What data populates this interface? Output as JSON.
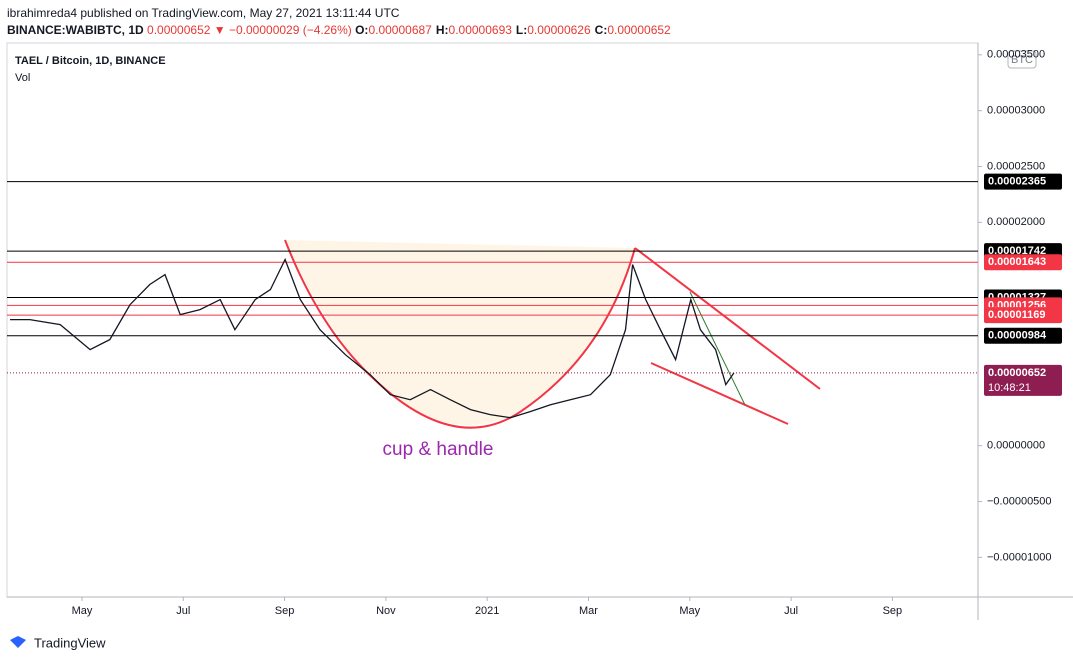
{
  "header": {
    "publisher": "ibrahimreda4 published on TradingView.com, May 27, 2021 13:11:44 UTC",
    "symbol": "BINANCE:WABIBTC, 1D",
    "last": "0.00000652",
    "change": "▼ −0.00000029 (−4.26%)",
    "ohlc": [
      {
        "k": "O:",
        "v": "0.00000687"
      },
      {
        "k": "H:",
        "v": "0.00000693"
      },
      {
        "k": "L:",
        "v": "0.00000626"
      },
      {
        "k": "C:",
        "v": "0.00000652"
      }
    ]
  },
  "legend": {
    "title": "TAEL / Bitcoin, 1D, BINANCE",
    "volume": "Vol"
  },
  "currency": "BTC",
  "annotation": "cup & handle",
  "footer": "TradingView",
  "chart_data": {
    "type": "line",
    "color": "#131722",
    "x": [
      -1.42,
      -1.03,
      -0.43,
      0.16,
      0.55,
      0.95,
      1.34,
      1.64,
      1.94,
      2.33,
      2.73,
      3.02,
      3.42,
      3.72,
      4.01,
      4.31,
      4.7,
      5.2,
      5.69,
      6.09,
      6.48,
      6.88,
      7.27,
      7.67,
      8.06,
      8.46,
      8.85,
      9.25,
      9.64,
      10.04,
      10.43,
      10.73,
      10.87,
      11.13,
      11.42,
      11.72,
      12.02,
      12.21,
      12.51,
      12.71,
      12.87
    ],
    "values": [
      1.129e-05,
      1.129e-05,
      1.084e-05,
      8.6e-06,
      9.5e-06,
      1.263e-05,
      1.443e-05,
      1.532e-05,
      1.174e-05,
      1.219e-05,
      1.308e-05,
      1.039e-05,
      1.308e-05,
      1.398e-05,
      1.667e-05,
      1.308e-05,
      1.039e-05,
      8.15e-06,
      6.36e-06,
      4.57e-06,
      4.12e-06,
      5.02e-06,
      4.12e-06,
      3.23e-06,
      2.78e-06,
      2.51e-06,
      3.05e-06,
      3.67e-06,
      4.12e-06,
      4.57e-06,
      6.36e-06,
      1.039e-05,
      1.622e-05,
      1.308e-05,
      1.039e-05,
      7.71e-06,
      1.308e-05,
      1.039e-05,
      8.6e-06,
      5.47e-06,
      6.52e-06
    ],
    "xlim": [
      -1.48,
      17.69
    ],
    "xticks": [
      {
        "value": 0,
        "label": "May"
      },
      {
        "value": 2,
        "label": "Jul"
      },
      {
        "value": 4,
        "label": "Sep"
      },
      {
        "value": 6,
        "label": "Nov"
      },
      {
        "value": 8,
        "label": "2021"
      },
      {
        "value": 10,
        "label": "Mar"
      },
      {
        "value": 12,
        "label": "May"
      },
      {
        "value": 14,
        "label": "Jul"
      },
      {
        "value": 16,
        "label": "Sep"
      }
    ],
    "ylim": [
      -1.355e-05,
      3.606e-05
    ],
    "yticks": [
      {
        "value": 3.5e-05,
        "label": "0.00003500"
      },
      {
        "value": 3e-05,
        "label": "0.00003000"
      },
      {
        "value": 2.5e-05,
        "label": "0.00002500"
      },
      {
        "value": 2e-05,
        "label": "0.00002000"
      },
      {
        "value": 0,
        "label": "0.00000000"
      },
      {
        "value": -5e-06,
        "label": "−0.00000500"
      },
      {
        "value": -1e-05,
        "label": "−0.00001000"
      }
    ],
    "levels": [
      {
        "value": 2.365e-05,
        "label": "0.00002365",
        "color": "#000000"
      },
      {
        "value": 1.742e-05,
        "label": "0.00001742",
        "color": "#000000"
      },
      {
        "value": 1.643e-05,
        "label": "0.00001643",
        "color": "#f23645"
      },
      {
        "value": 1.327e-05,
        "label": "0.00001327",
        "color": "#000000"
      },
      {
        "value": 1.256e-05,
        "label": "0.00001256",
        "color": "#f23645"
      },
      {
        "value": 1.169e-05,
        "label": "0.00001169",
        "color": "#f23645"
      },
      {
        "value": 9.84e-06,
        "label": "0.00000984",
        "color": "#000000"
      }
    ],
    "current": {
      "value": 6.52e-06,
      "label": "0.00000652",
      "countdown": "10:48:21",
      "color": "#8e1d51"
    }
  }
}
